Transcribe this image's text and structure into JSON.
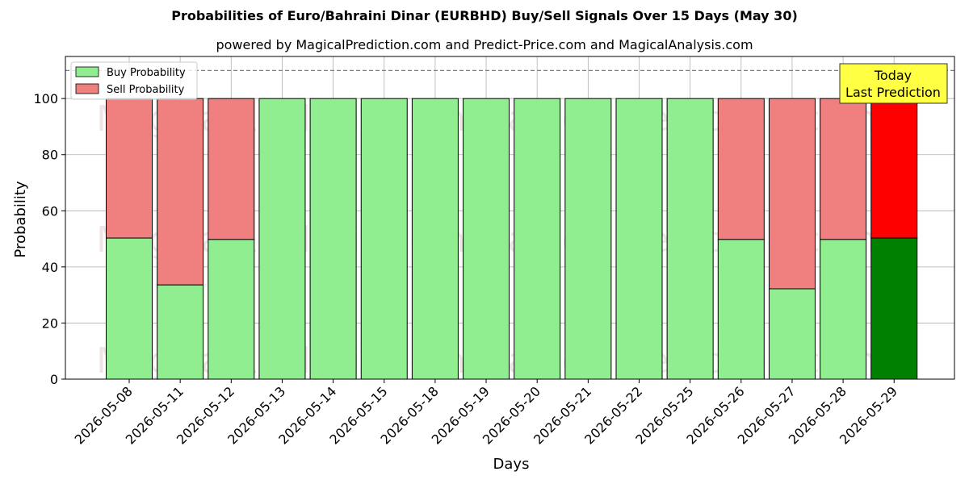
{
  "chart_data": {
    "type": "bar",
    "stacked": true,
    "title": "Probabilities of Euro/Bahraini Dinar (EURBHD) Buy/Sell Signals Over 15 Days (May 30)",
    "subtitle": "powered by MagicalPrediction.com and Predict-Price.com and MagicalAnalysis.com",
    "xlabel": "Days",
    "ylabel": "Probability",
    "ylim": [
      0,
      115
    ],
    "yticks": [
      0,
      20,
      40,
      60,
      80,
      100
    ],
    "grid": true,
    "legend_position": "top-left",
    "threshold_line": 110,
    "categories": [
      "2026-05-08",
      "2026-05-11",
      "2026-05-12",
      "2026-05-13",
      "2026-05-14",
      "2026-05-15",
      "2026-05-18",
      "2026-05-19",
      "2026-05-20",
      "2026-05-21",
      "2026-05-22",
      "2026-05-25",
      "2026-05-26",
      "2026-05-27",
      "2026-05-28",
      "2026-05-29"
    ],
    "series": [
      {
        "name": "Buy Probability",
        "color": "#90ee90",
        "highlight_color": "#008000",
        "values": [
          50.3,
          33.6,
          49.8,
          100,
          100,
          100,
          100,
          100,
          100,
          100,
          100,
          100,
          49.8,
          32.2,
          49.8,
          50.3
        ]
      },
      {
        "name": "Sell Probability",
        "color": "#f08080",
        "highlight_color": "#ff0000",
        "values": [
          49.7,
          66.4,
          50.2,
          0,
          0,
          0,
          0,
          0,
          0,
          0,
          0,
          0,
          50.2,
          67.8,
          50.2,
          49.7
        ]
      }
    ],
    "highlight_index": 15,
    "annotation": {
      "text": [
        "Today",
        "Last Prediction"
      ],
      "background": "#ffff44"
    },
    "watermarks": [
      "MagicalAnalysis.com",
      "MagicalPrediction.com"
    ]
  }
}
